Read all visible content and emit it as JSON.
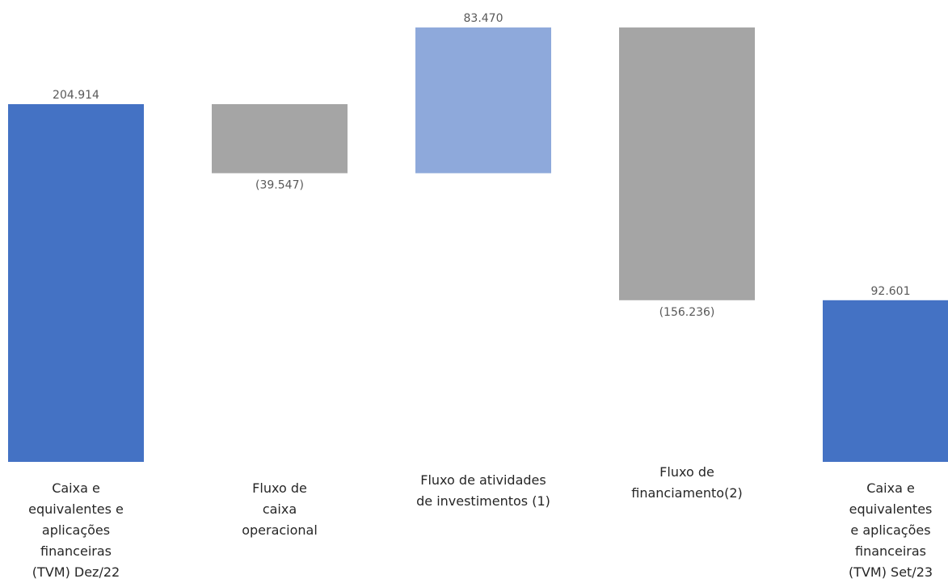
{
  "chart_data": {
    "type": "bar",
    "subtype": "waterfall",
    "colors": {
      "total": "#4472C4",
      "decrease": "#A5A5A5",
      "increase": "#8EA9DB"
    },
    "steps": [
      {
        "label_lines": [
          "Caixa e",
          "equivalentes e",
          "aplicações",
          "financeiras",
          "(TVM) Dez/22"
        ],
        "value": 204914,
        "display": "204.914",
        "kind": "total"
      },
      {
        "label_lines": [
          "Fluxo de",
          "caixa",
          "operacional"
        ],
        "value": -39547,
        "display": "(39.547)",
        "kind": "decrease"
      },
      {
        "label_lines": [
          "Fluxo de atividades",
          "de investimentos (1)"
        ],
        "value": 83470,
        "display": "83.470",
        "kind": "increase"
      },
      {
        "label_lines": [
          "Fluxo de",
          "financiamento(2)"
        ],
        "value": -156236,
        "display": "(156.236)",
        "kind": "decrease"
      },
      {
        "label_lines": [
          "Caixa e",
          "equivalentes",
          "e aplicações",
          "financeiras",
          "(TVM) Set/23"
        ],
        "value": 92601,
        "display": "92.601",
        "kind": "total"
      }
    ],
    "ylim": [
      0,
      250000
    ],
    "grid": false,
    "legend": "none"
  }
}
